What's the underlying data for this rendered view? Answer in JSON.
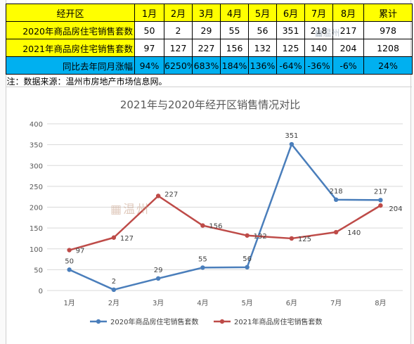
{
  "table": {
    "header": [
      "经开区",
      "1月",
      "2月",
      "3月",
      "4月",
      "5月",
      "6月",
      "7月",
      "8月",
      "累计"
    ],
    "rows": [
      {
        "label": "2020年商品房住宅销售套数",
        "cells": [
          "50",
          "2",
          "29",
          "55",
          "56",
          "351",
          "218",
          "217",
          "978"
        ]
      },
      {
        "label": "2021年商品房住宅销售套数",
        "cells": [
          "97",
          "127",
          "227",
          "156",
          "132",
          "125",
          "140",
          "204",
          "1208"
        ]
      },
      {
        "label": "同比去年同月涨幅",
        "cells": [
          "94%",
          "6250%",
          "683%",
          "184%",
          "136%",
          "-64%",
          "-36%",
          "-6%",
          "24%"
        ]
      }
    ],
    "note": "注：数据来源：温州市房地产市场信息网。"
  },
  "watermark": {
    "logo_text": "温州"
  },
  "chart_data": {
    "type": "line",
    "title": "2021年与2020年经开区销售情况对比",
    "categories": [
      "1月",
      "2月",
      "3月",
      "4月",
      "5月",
      "6月",
      "7月",
      "8月"
    ],
    "ylim": [
      0,
      400
    ],
    "yticks": [
      0,
      50,
      100,
      150,
      200,
      250,
      300,
      350,
      400
    ],
    "grid": true,
    "legend": "bottom",
    "series": [
      {
        "name": "2020年商品房住宅销售套数",
        "values": [
          50,
          2,
          29,
          55,
          56,
          351,
          218,
          217
        ],
        "color": "#4a7ebb"
      },
      {
        "name": "2021年商品房住宅销售套数",
        "values": [
          97,
          127,
          227,
          156,
          132,
          125,
          140,
          204
        ],
        "color": "#be4b48"
      }
    ]
  }
}
